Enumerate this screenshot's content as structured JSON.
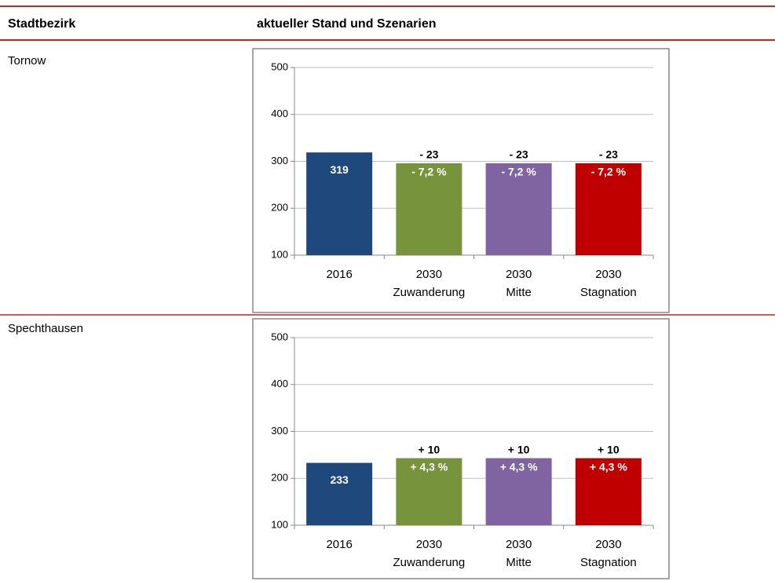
{
  "table": {
    "header": [
      "Stadtbezirk",
      "aktueller Stand und Szenarien"
    ],
    "rows": [
      "Tornow",
      "Spechthausen"
    ]
  },
  "chart_data": [
    {
      "type": "bar",
      "categories": [
        [
          "2016"
        ],
        [
          "2030",
          "Zuwanderung"
        ],
        [
          "2030",
          "Mitte"
        ],
        [
          "2030",
          "Stagnation"
        ]
      ],
      "values": [
        319,
        296,
        296,
        296
      ],
      "value_labels": [
        "319",
        null,
        null,
        null
      ],
      "change_labels": [
        null,
        "- 23",
        "- 23",
        "- 23"
      ],
      "pct_labels": [
        null,
        "- 7,2 %",
        "- 7,2 %",
        "- 7,2 %"
      ],
      "colors": [
        "#1f497d",
        "#77933c",
        "#8064a2",
        "#c00000"
      ],
      "ylim": [
        100,
        500
      ],
      "yticks": [
        100,
        200,
        300,
        400,
        500
      ],
      "grid": true
    },
    {
      "type": "bar",
      "categories": [
        [
          "2016"
        ],
        [
          "2030",
          "Zuwanderung"
        ],
        [
          "2030",
          "Mitte"
        ],
        [
          "2030",
          "Stagnation"
        ]
      ],
      "values": [
        233,
        243,
        243,
        243
      ],
      "value_labels": [
        "233",
        null,
        null,
        null
      ],
      "change_labels": [
        null,
        "+ 10",
        "+ 10",
        "+ 10"
      ],
      "pct_labels": [
        null,
        "+ 4,3 %",
        "+ 4,3 %",
        "+ 4,3 %"
      ],
      "colors": [
        "#1f497d",
        "#77933c",
        "#8064a2",
        "#c00000"
      ],
      "ylim": [
        100,
        500
      ],
      "yticks": [
        100,
        200,
        300,
        400,
        500
      ],
      "grid": true
    }
  ]
}
